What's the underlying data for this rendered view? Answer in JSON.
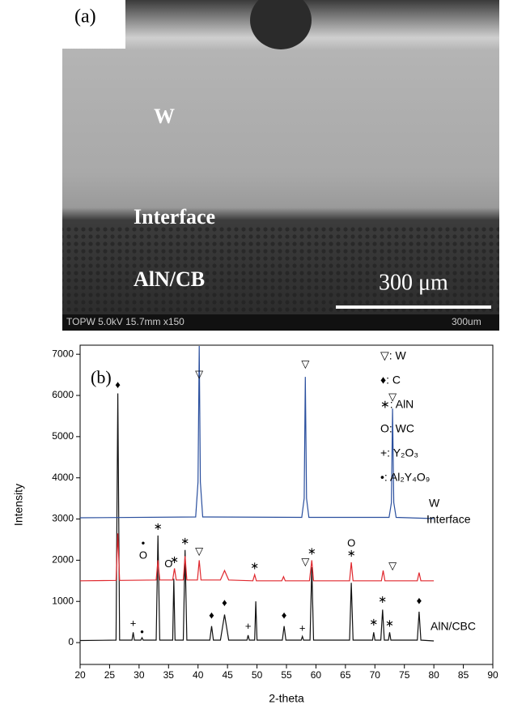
{
  "panel_a": {
    "label": "(a)",
    "regions": [
      "W",
      "Interface",
      "AlN/CB"
    ],
    "scale_label": "300 μm",
    "footer_info": "TOPW 5.0kV 15.7mm x150",
    "footer_scale": "300um"
  },
  "chart_data": {
    "type": "line",
    "panel_label": "(b)",
    "x_label": "2-theta",
    "y_label": "Intensity",
    "xlim": [
      20,
      90
    ],
    "xticks": [
      20,
      25,
      30,
      35,
      40,
      45,
      50,
      55,
      60,
      65,
      70,
      75,
      80,
      85,
      90
    ],
    "ylim": [
      -530,
      7220
    ],
    "yticks": [
      0,
      1000,
      2000,
      3000,
      4000,
      5000,
      6000,
      7000
    ],
    "series": [
      {
        "name": "W",
        "color": "#2a4f9e",
        "x": [
          20,
          39.6,
          40.0,
          40.2,
          40.4,
          40.8,
          57.6,
          58.0,
          58.2,
          58.4,
          58.8,
          72.4,
          72.8,
          73.0,
          73.2,
          73.6,
          80
        ],
        "values": [
          3030,
          3050,
          3900,
          7200,
          3900,
          3050,
          3040,
          3500,
          6450,
          3500,
          3040,
          3040,
          3400,
          5680,
          3400,
          3040,
          3010
        ]
      },
      {
        "name": "Interface",
        "color": "#e0282e",
        "x": [
          20,
          26.1,
          26.4,
          26.7,
          32.9,
          33.2,
          33.5,
          35.7,
          36.0,
          36.3,
          37.5,
          37.8,
          38.1,
          39.9,
          40.2,
          40.5,
          43.8,
          44.5,
          45.2,
          49.3,
          49.6,
          49.9,
          54.2,
          54.5,
          54.8,
          58.9,
          59.3,
          59.6,
          65.7,
          66.0,
          66.3,
          71.1,
          71.4,
          71.7,
          77.2,
          77.5,
          77.8,
          80
        ],
        "values": [
          1500,
          1510,
          2650,
          1510,
          1520,
          2000,
          1520,
          1520,
          1800,
          1520,
          1520,
          2100,
          1520,
          1520,
          2000,
          1520,
          1520,
          1750,
          1520,
          1500,
          1650,
          1500,
          1500,
          1600,
          1500,
          1500,
          2000,
          1500,
          1500,
          1950,
          1500,
          1500,
          1750,
          1500,
          1500,
          1700,
          1500,
          1500
        ]
      },
      {
        "name": "AlN/CBC",
        "color": "#111111",
        "x": [
          20,
          26.1,
          26.4,
          26.7,
          28.8,
          29.0,
          29.2,
          30.3,
          30.5,
          30.7,
          32.9,
          33.2,
          33.5,
          35.7,
          35.9,
          36.1,
          37.5,
          37.8,
          38.1,
          42.0,
          42.3,
          42.6,
          43.8,
          44.5,
          45.2,
          48.3,
          48.5,
          48.7,
          49.6,
          49.8,
          50.0,
          54.3,
          54.6,
          54.9,
          57.5,
          57.7,
          57.9,
          59.0,
          59.3,
          59.6,
          65.7,
          66.0,
          66.3,
          69.6,
          69.8,
          70.0,
          71.0,
          71.3,
          71.6,
          72.3,
          72.5,
          72.7,
          77.2,
          77.5,
          77.8,
          80
        ],
        "values": [
          50,
          60,
          6050,
          60,
          60,
          250,
          60,
          60,
          120,
          60,
          60,
          2600,
          60,
          60,
          1550,
          60,
          60,
          2250,
          60,
          60,
          400,
          60,
          60,
          680,
          60,
          60,
          180,
          60,
          60,
          1000,
          60,
          60,
          400,
          60,
          60,
          150,
          60,
          60,
          1830,
          60,
          60,
          1450,
          60,
          60,
          250,
          60,
          60,
          800,
          60,
          60,
          250,
          60,
          60,
          750,
          60,
          40
        ]
      }
    ],
    "key": [
      "▽: W",
      "♦: C",
      "∗: AlN",
      "O: WC",
      "+: Y₂O₃",
      "•: Al₂Y₄O₉"
    ],
    "annotations": [
      {
        "text": "♦",
        "x": 26.4,
        "y": 6250
      },
      {
        "text": "▽",
        "x": 40.2,
        "y": 6500
      },
      {
        "text": "▽",
        "x": 58.2,
        "y": 6750
      },
      {
        "text": "▽",
        "x": 73.0,
        "y": 5950
      },
      {
        "text": "∗",
        "x": 33.2,
        "y": 2800
      },
      {
        "text": "•",
        "x": 30.7,
        "y": 2400
      },
      {
        "text": "O",
        "x": 30.7,
        "y": 2100
      },
      {
        "text": "O",
        "x": 35.0,
        "y": 1900
      },
      {
        "text": "∗",
        "x": 36.0,
        "y": 2000
      },
      {
        "text": "∗",
        "x": 37.8,
        "y": 2450
      },
      {
        "text": "▽",
        "x": 40.2,
        "y": 2200
      },
      {
        "text": "∗",
        "x": 49.6,
        "y": 1850
      },
      {
        "text": "▽",
        "x": 58.2,
        "y": 1950
      },
      {
        "text": "∗",
        "x": 59.3,
        "y": 2200
      },
      {
        "text": "O",
        "x": 66.0,
        "y": 2400
      },
      {
        "text": "∗",
        "x": 66.0,
        "y": 2150
      },
      {
        "text": "▽",
        "x": 73.0,
        "y": 1850
      },
      {
        "text": "+",
        "x": 29.0,
        "y": 450
      },
      {
        "text": "•",
        "x": 30.5,
        "y": 250
      },
      {
        "text": "♦",
        "x": 42.3,
        "y": 650
      },
      {
        "text": "♦",
        "x": 44.5,
        "y": 950
      },
      {
        "text": "+",
        "x": 48.5,
        "y": 380
      },
      {
        "text": "♦",
        "x": 54.6,
        "y": 650
      },
      {
        "text": "+",
        "x": 57.7,
        "y": 330
      },
      {
        "text": "∗",
        "x": 69.8,
        "y": 480
      },
      {
        "text": "∗",
        "x": 71.3,
        "y": 1030
      },
      {
        "text": "∗",
        "x": 72.5,
        "y": 450
      },
      {
        "text": "♦",
        "x": 77.5,
        "y": 1000
      }
    ]
  }
}
